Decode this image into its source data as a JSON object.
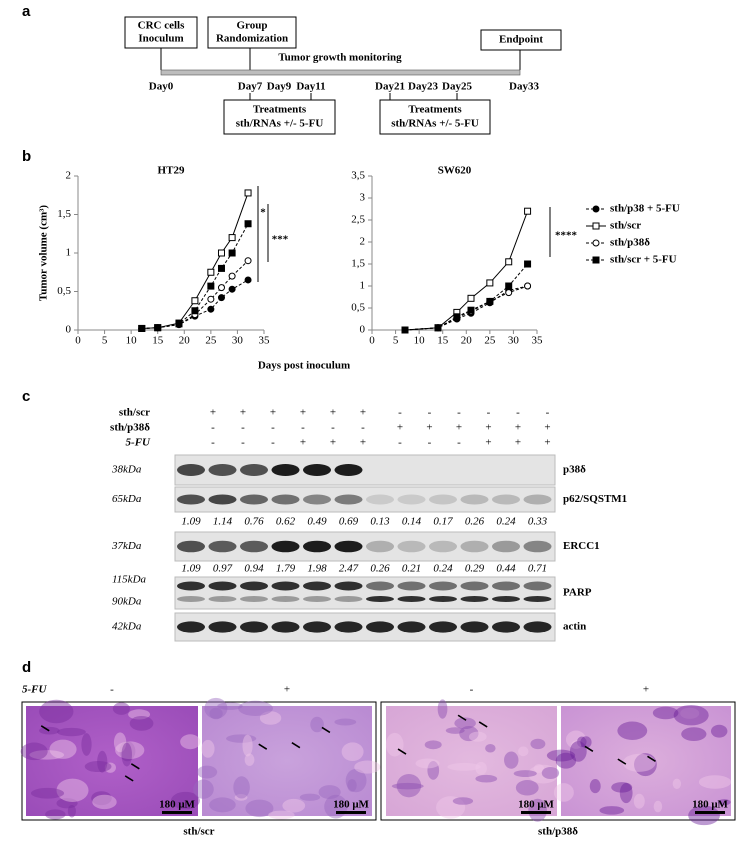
{
  "figure": {
    "panel_a": {
      "label": "a",
      "boxes": [
        {
          "lines": [
            "CRC cells",
            "Inoculum"
          ]
        },
        {
          "lines": [
            "Group",
            "Randomization"
          ]
        },
        {
          "lines": [
            "Endpoint"
          ]
        }
      ],
      "monitoring": "Tumor  growth  monitoring",
      "days": [
        "Day0",
        "Day7",
        "Day9",
        "Day11",
        "Day21",
        "Day23",
        "Day25",
        "Day33"
      ],
      "treatments": [
        {
          "lines": [
            "Treatments",
            "sth/RNAs +/-  5-FU"
          ]
        },
        {
          "lines": [
            "Treatments",
            "sth/RNAs +/-  5-FU"
          ]
        }
      ]
    },
    "panel_b": {
      "label": "b",
      "xlabel": "Days post inoculum"
    },
    "panel_c": {
      "label": "c",
      "rows": [
        {
          "name": "sth/scr",
          "signs": [
            "+",
            "+",
            "+",
            "+",
            "+",
            "+",
            "-",
            "-",
            "-",
            "-",
            "-",
            "-"
          ]
        },
        {
          "name": "sth/p38δ",
          "signs": [
            "-",
            "-",
            "-",
            "-",
            "-",
            "-",
            "+",
            "+",
            "+",
            "+",
            "+",
            "+"
          ]
        },
        {
          "name": "5-FU",
          "signs": [
            "-",
            "-",
            "-",
            "+",
            "+",
            "+",
            "-",
            "-",
            "-",
            "+",
            "+",
            "+"
          ]
        }
      ],
      "blots": [
        {
          "kda": [
            "38kDa"
          ],
          "name": "p38δ"
        },
        {
          "kda": [
            "65kDa"
          ],
          "name": "p62/SQSTM1",
          "quant": [
            1.09,
            1.14,
            0.76,
            0.62,
            0.49,
            0.69,
            0.13,
            0.14,
            0.17,
            0.26,
            0.24,
            0.33
          ]
        },
        {
          "kda": [
            "37kDa"
          ],
          "name": "ERCC1",
          "quant": [
            1.09,
            0.97,
            0.94,
            1.79,
            1.98,
            2.47,
            0.26,
            0.21,
            0.24,
            0.29,
            0.44,
            0.71
          ]
        },
        {
          "kda": [
            "115kDa",
            "90kDa"
          ],
          "name": "PARP"
        },
        {
          "kda": [
            "42kDa"
          ],
          "name": "actin"
        }
      ]
    },
    "panel_d": {
      "label": "d",
      "treatment": "5-FU",
      "signs": [
        "-",
        "+",
        "-",
        "+"
      ],
      "scale": [
        "180 μM",
        "180 μM",
        "180 μM",
        "180 μM"
      ],
      "groups": [
        "sth/scr",
        "sth/p38δ"
      ]
    }
  },
  "chart_data": [
    {
      "type": "line",
      "title": "HT29",
      "ylabel": "Tumor volume (cm³)",
      "xlim": [
        0,
        35
      ],
      "xticks": [
        0,
        5,
        10,
        15,
        20,
        25,
        30,
        35
      ],
      "ylim": [
        0,
        2
      ],
      "yticks": [
        0,
        {
          "value": 0.5,
          "label": "0,5"
        },
        1,
        {
          "value": 1.5,
          "label": "1,5"
        },
        2
      ],
      "x": [
        12,
        15,
        19,
        22,
        25,
        27,
        29,
        32
      ],
      "series": [
        {
          "name": "sth/p38 + 5-FU",
          "color": "#000000",
          "marker": "circle",
          "filled": true,
          "dashed": true,
          "values": [
            0.02,
            0.03,
            0.07,
            0.18,
            0.27,
            0.42,
            0.53,
            0.65
          ]
        },
        {
          "name": "sth/scr",
          "color": "#000000",
          "marker": "square",
          "filled": false,
          "dashed": false,
          "values": [
            0.02,
            0.03,
            0.09,
            0.38,
            0.75,
            1.0,
            1.2,
            1.78
          ]
        },
        {
          "name": "sth/p38δ",
          "color": "#000000",
          "marker": "circle",
          "filled": false,
          "dashed": true,
          "values": [
            0.02,
            0.03,
            0.07,
            0.2,
            0.4,
            0.55,
            0.7,
            0.9
          ]
        },
        {
          "name": "sth/scr + 5-FU",
          "color": "#000000",
          "marker": "square",
          "filled": true,
          "dashed": true,
          "values": [
            0.02,
            0.03,
            0.08,
            0.25,
            0.57,
            0.8,
            1.0,
            1.38
          ]
        }
      ],
      "annotations": [
        "*",
        "***"
      ]
    },
    {
      "type": "line",
      "title": "SW620",
      "xlim": [
        0,
        35
      ],
      "xticks": [
        0,
        5,
        10,
        15,
        20,
        25,
        30,
        35
      ],
      "ylim": [
        0,
        3.5
      ],
      "yticks": [
        0,
        {
          "value": 0.5,
          "label": "0,5"
        },
        1,
        {
          "value": 1.5,
          "label": "1,5"
        },
        2,
        {
          "value": 2.5,
          "label": "2,5"
        },
        3,
        {
          "value": 3.5,
          "label": "3,5"
        }
      ],
      "x": [
        7,
        14,
        18,
        21,
        25,
        29,
        33
      ],
      "series": [
        {
          "name": "sth/p38 + 5-FU",
          "color": "#000000",
          "marker": "circle",
          "filled": true,
          "dashed": true,
          "values": [
            0,
            0.05,
            0.25,
            0.38,
            0.62,
            0.9,
            1.0
          ]
        },
        {
          "name": "sth/scr",
          "color": "#000000",
          "marker": "square",
          "filled": false,
          "dashed": false,
          "values": [
            0,
            0.05,
            0.4,
            0.72,
            1.07,
            1.55,
            2.7
          ]
        },
        {
          "name": "sth/p38δ",
          "color": "#000000",
          "marker": "circle",
          "filled": false,
          "dashed": true,
          "values": [
            0,
            0.05,
            0.28,
            0.42,
            0.65,
            0.85,
            1.0
          ]
        },
        {
          "name": "sth/scr + 5-FU",
          "color": "#000000",
          "marker": "square",
          "filled": true,
          "dashed": true,
          "values": [
            0,
            0.05,
            0.3,
            0.45,
            0.65,
            1.0,
            1.5
          ]
        }
      ],
      "annotations": [
        "****"
      ]
    }
  ]
}
